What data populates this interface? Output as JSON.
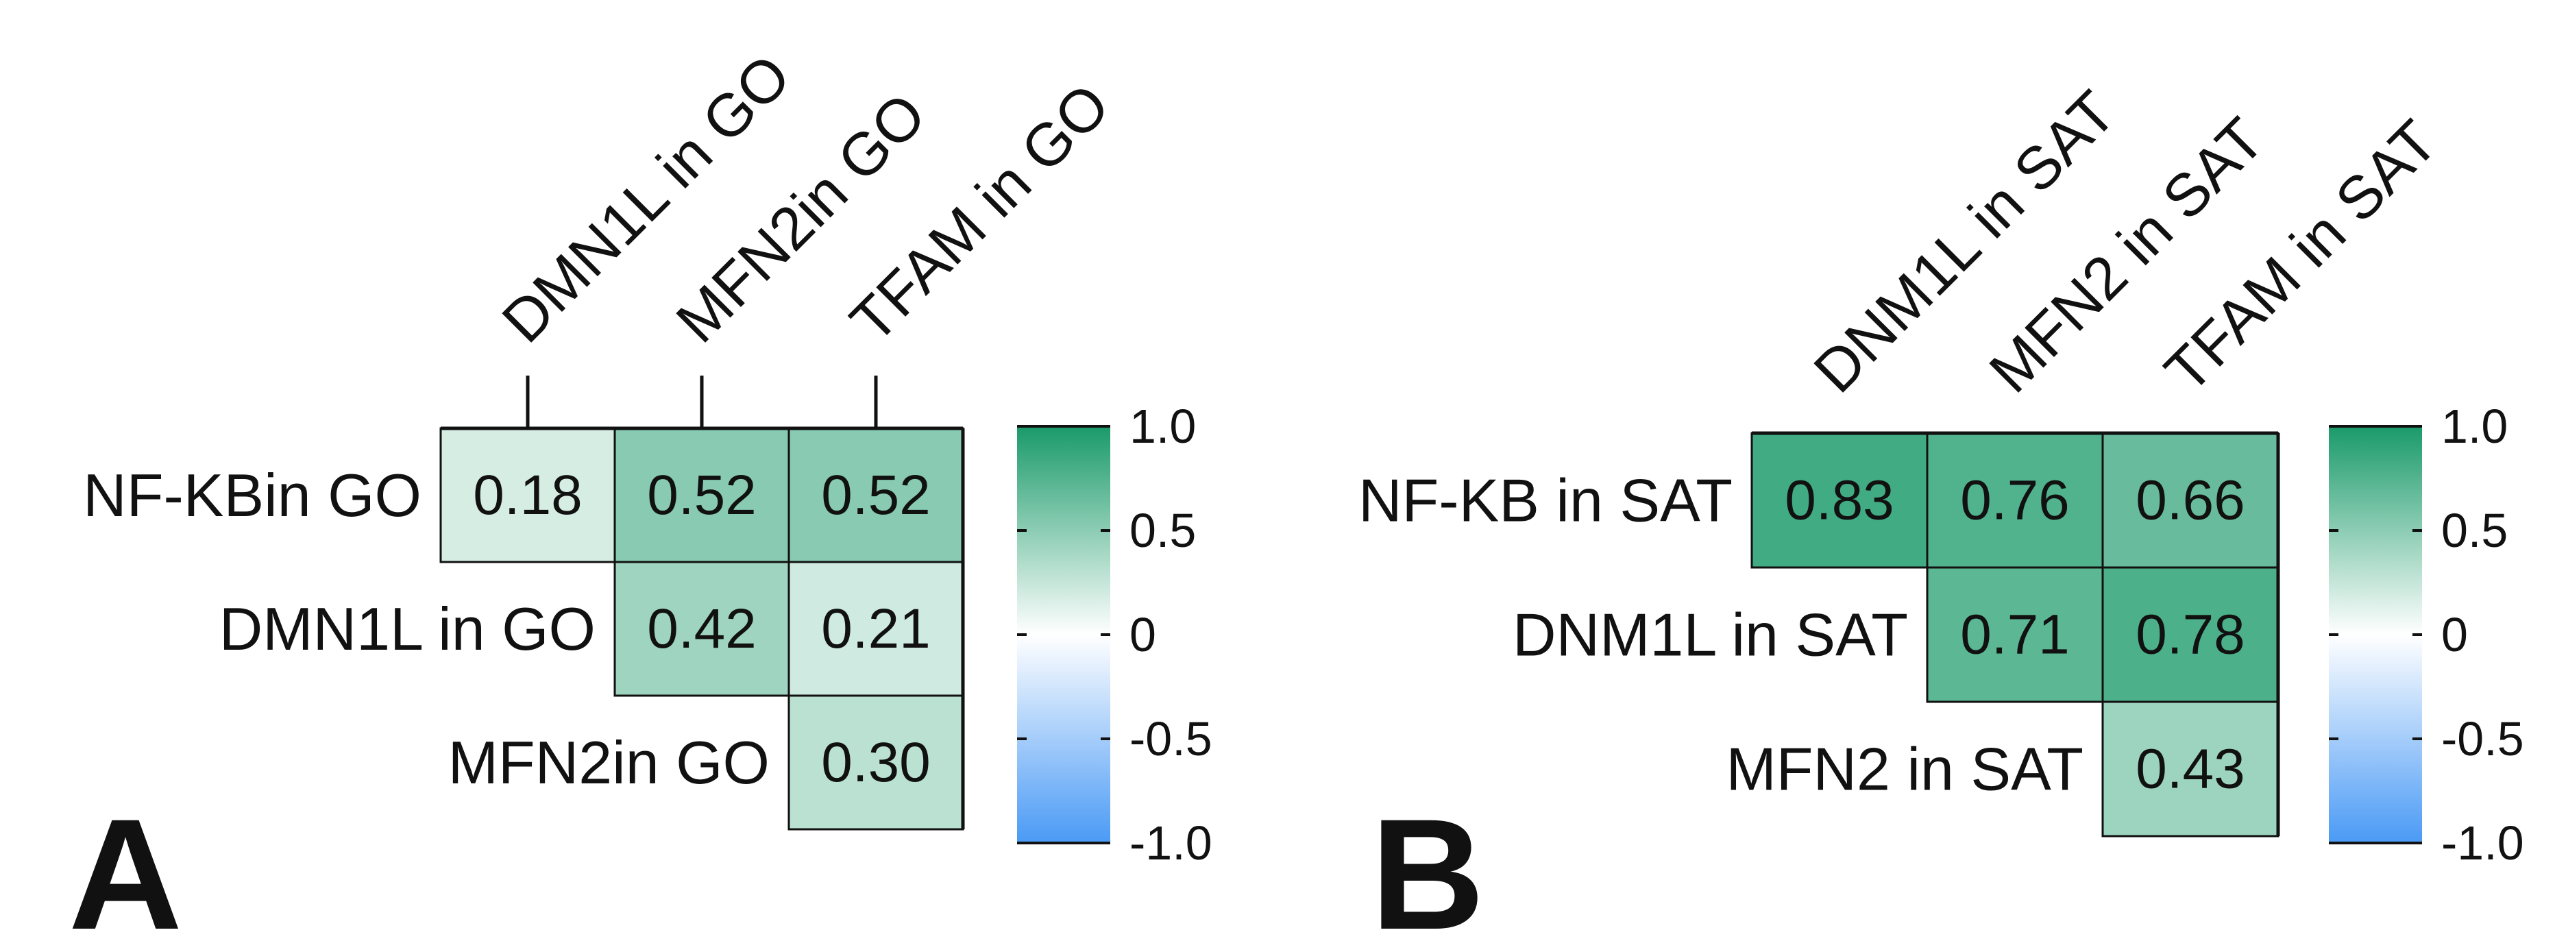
{
  "chart_data": [
    {
      "type": "heatmap",
      "panel_label": "A",
      "columns": [
        "DMN1L in GO",
        "MFN2in GO",
        "TFAM in GO"
      ],
      "rows": [
        "NF-KBin GO",
        "DMN1L in GO",
        "MFN2in GO"
      ],
      "cells": [
        {
          "row": 0,
          "col": 0,
          "value": 0.18,
          "label": "0.18"
        },
        {
          "row": 0,
          "col": 1,
          "value": 0.52,
          "label": "0.52"
        },
        {
          "row": 0,
          "col": 2,
          "value": 0.52,
          "label": "0.52"
        },
        {
          "row": 1,
          "col": 1,
          "value": 0.42,
          "label": "0.42"
        },
        {
          "row": 1,
          "col": 2,
          "value": 0.21,
          "label": "0.21"
        },
        {
          "row": 2,
          "col": 2,
          "value": 0.3,
          "label": "0.30"
        }
      ],
      "color_range": [
        -1.0,
        1.0
      ],
      "colorbar_ticks": [
        "1.0",
        "0.5",
        "0",
        "-0.5",
        "-1.0"
      ],
      "colorbar_tick_values": [
        1.0,
        0.5,
        0,
        -0.5,
        -1.0
      ]
    },
    {
      "type": "heatmap",
      "panel_label": "B",
      "columns": [
        "DNM1L in SAT",
        "MFN2 in SAT",
        "TFAM in SAT"
      ],
      "rows": [
        "NF-KB in SAT",
        "DNM1L in SAT",
        "MFN2 in SAT"
      ],
      "cells": [
        {
          "row": 0,
          "col": 0,
          "value": 0.83,
          "label": "0.83"
        },
        {
          "row": 0,
          "col": 1,
          "value": 0.76,
          "label": "0.76"
        },
        {
          "row": 0,
          "col": 2,
          "value": 0.66,
          "label": "0.66"
        },
        {
          "row": 1,
          "col": 1,
          "value": 0.71,
          "label": "0.71"
        },
        {
          "row": 1,
          "col": 2,
          "value": 0.78,
          "label": "0.78"
        },
        {
          "row": 2,
          "col": 2,
          "value": 0.43,
          "label": "0.43"
        }
      ],
      "color_range": [
        -1.0,
        1.0
      ],
      "colorbar_ticks": [
        "1.0",
        "0.5",
        "0",
        "-0.5",
        "-1.0"
      ],
      "colorbar_tick_values": [
        1.0,
        0.5,
        0,
        -0.5,
        -1.0
      ]
    }
  ],
  "colors": {
    "positive_max": "#1a9a6a",
    "zero": "#ffffff",
    "negative_max": "#4a9af5",
    "text": "#111111",
    "grid": "#111111"
  }
}
